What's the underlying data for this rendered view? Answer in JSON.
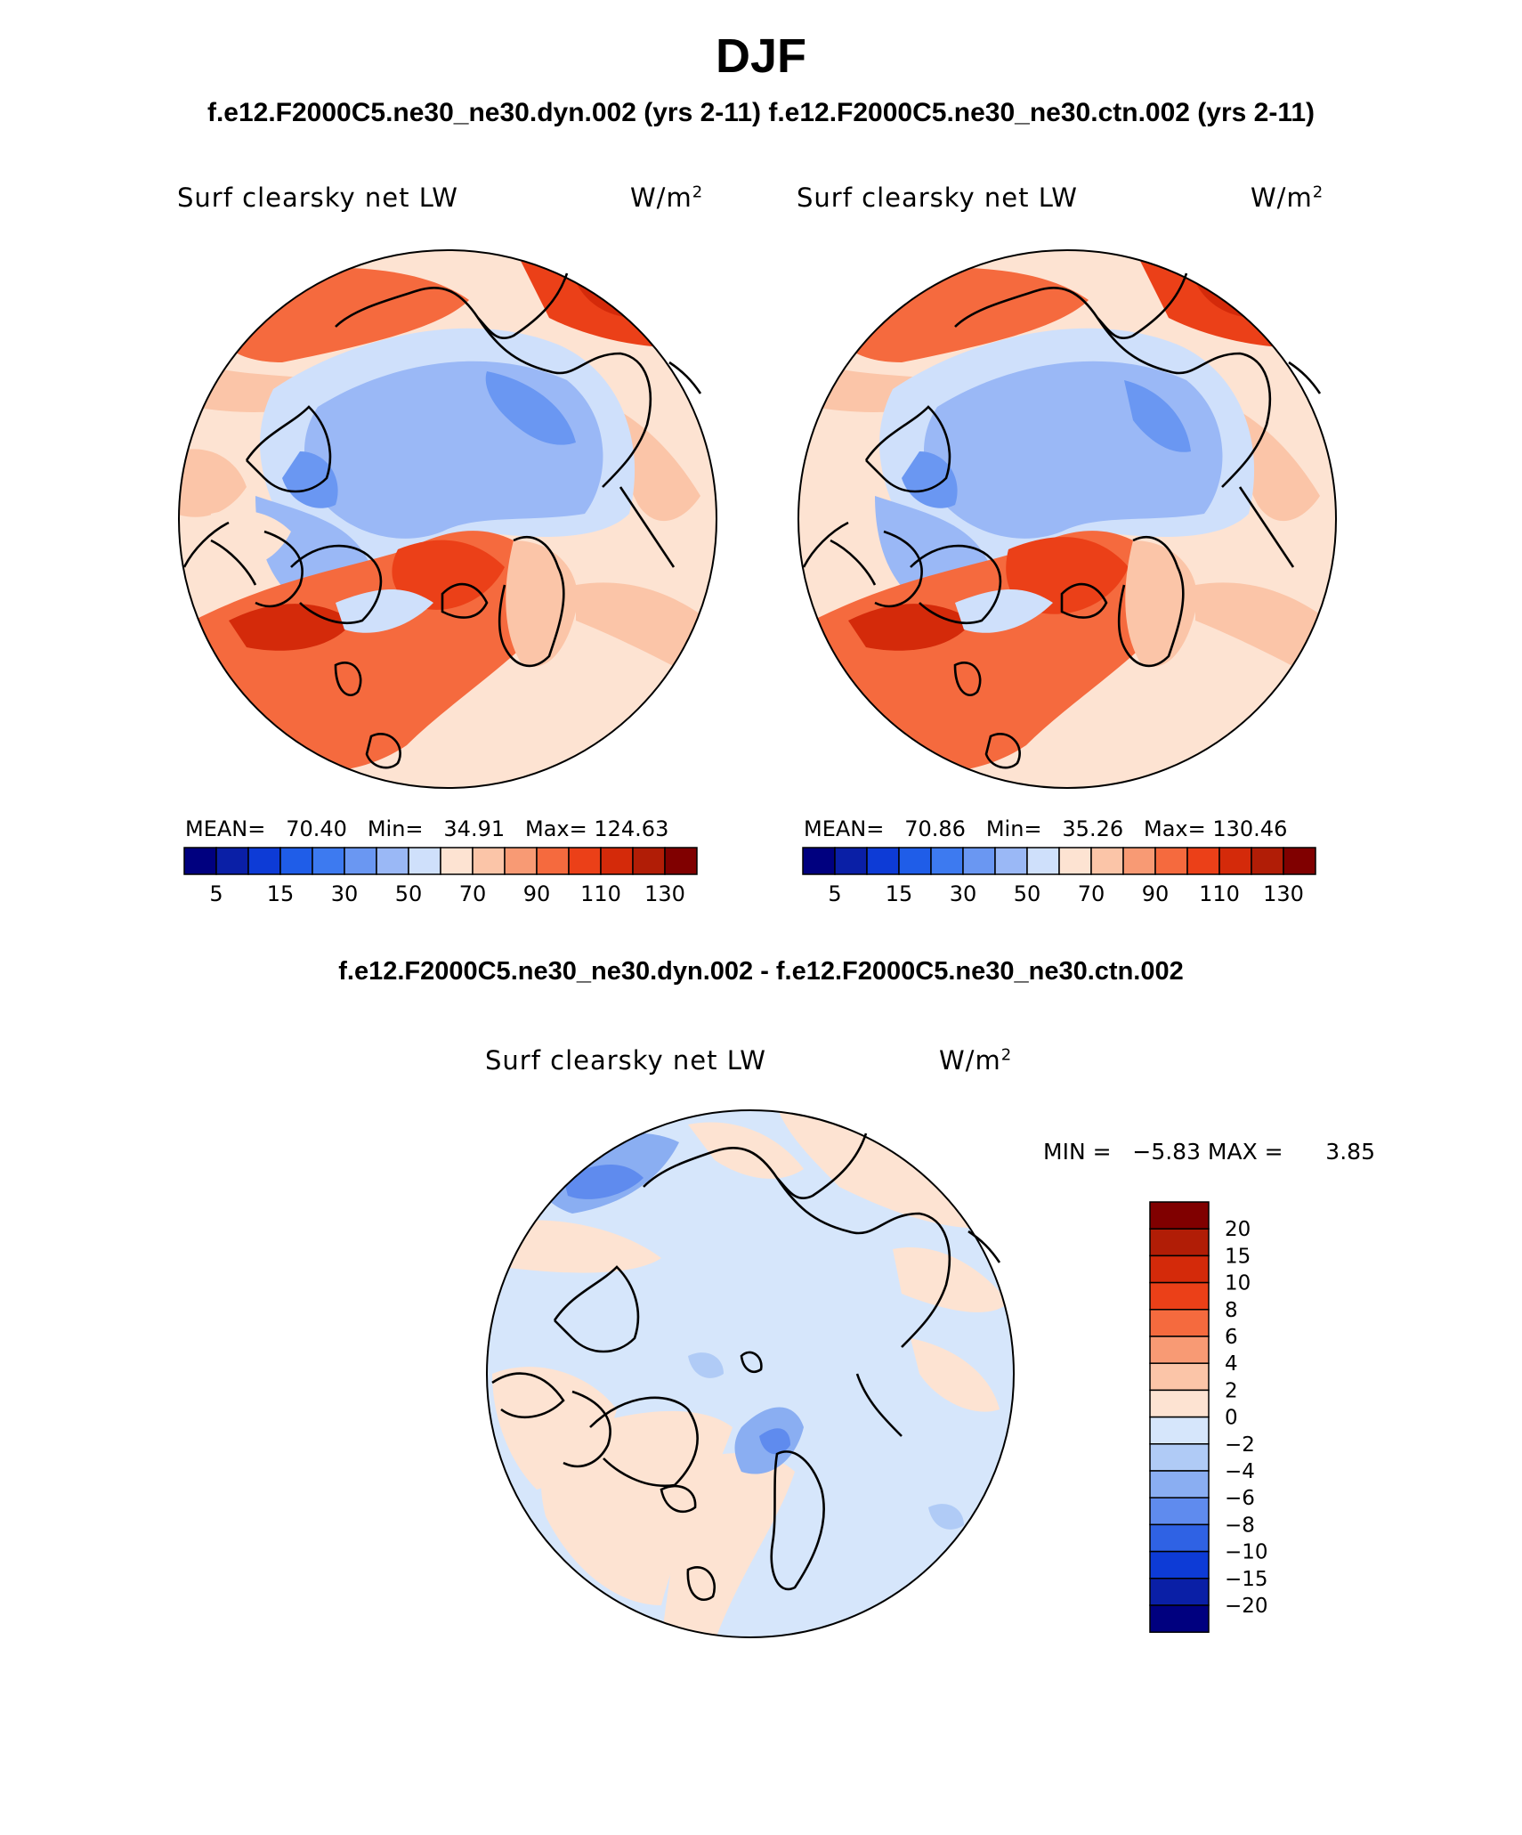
{
  "title": "DJF",
  "subtitle": "f.e12.F2000C5.ne30_ne30.dyn.002 (yrs 2-11)  f.e12.F2000C5.ne30_ne30.ctn.002 (yrs 2-11)",
  "diff_title": "f.e12.F2000C5.ne30_ne30.dyn.002 - f.e12.F2000C5.ne30_ne30.ctn.002",
  "panels": [
    {
      "variable": "Surf clearsky net LW",
      "units": "W/m",
      "units_sup": "2",
      "stats": "MEAN=   70.40   Min=   34.91   Max= 124.63"
    },
    {
      "variable": "Surf clearsky net LW",
      "units": "W/m",
      "units_sup": "2",
      "stats": "MEAN=   70.86   Min=   35.26   Max= 130.46"
    },
    {
      "variable": "Surf clearsky net LW",
      "units": "W/m",
      "units_sup": "2",
      "stats": "MIN =   −5.83 MAX =      3.85"
    }
  ],
  "colorbar_abs": {
    "tick_labels": [
      "5",
      "15",
      "30",
      "50",
      "70",
      "90",
      "110",
      "130"
    ],
    "colors": [
      "#00007f",
      "#0a1fa6",
      "#0d3bd6",
      "#1f5de8",
      "#3d7af0",
      "#6a97f2",
      "#9ab8f6",
      "#cfe0fb",
      "#fde3d2",
      "#fbc5a8",
      "#f89a74",
      "#f56a3e",
      "#eb4018",
      "#d42a0a",
      "#b11d06",
      "#800000"
    ]
  },
  "colorbar_diff": {
    "labels": [
      "20",
      "15",
      "10",
      "8",
      "6",
      "4",
      "2",
      "0",
      "−2",
      "−4",
      "−6",
      "−8",
      "−10",
      "−15",
      "−20"
    ],
    "colors_top_to_bottom": [
      "#800000",
      "#b11d06",
      "#d42a0a",
      "#eb4018",
      "#f56a3e",
      "#f89a74",
      "#fbc5a8",
      "#fde3d2",
      "#d6e6fb",
      "#b0cbf6",
      "#8aaef2",
      "#5f8bee",
      "#2f62e4",
      "#0d3bd6",
      "#0a1fa6",
      "#00007f"
    ]
  }
}
